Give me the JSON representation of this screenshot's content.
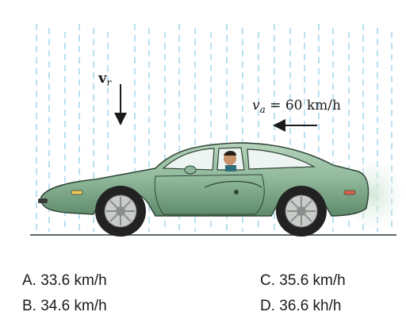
{
  "figure": {
    "rain_velocity_symbol": "v",
    "rain_velocity_subscript": "r",
    "car_velocity_symbol": "v",
    "car_velocity_subscript": "a",
    "car_velocity_value": " = 60 km/h"
  },
  "choices": [
    {
      "text": "A.  33.6 km/h"
    },
    {
      "text": "B.  34.6 km/h"
    },
    {
      "text": "C.  35.6 km/h"
    },
    {
      "text": "D.  36.6 kh/h"
    }
  ],
  "colors": {
    "car_body": "#8fb89a",
    "car_dark": "#4a6b55",
    "rain": "#8ecbe8",
    "ground": "#5c6b5f"
  }
}
